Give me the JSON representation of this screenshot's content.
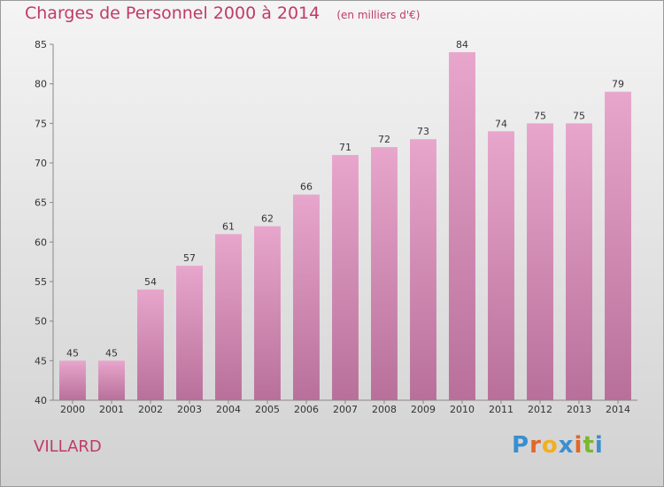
{
  "chart_data": {
    "type": "bar",
    "title": "Charges de Personnel 2000 à 2014",
    "subtitle": "(en milliers d'€)",
    "categories": [
      "2000",
      "2001",
      "2002",
      "2003",
      "2004",
      "2005",
      "2006",
      "2007",
      "2008",
      "2009",
      "2010",
      "2011",
      "2012",
      "2013",
      "2014"
    ],
    "values": [
      45,
      45,
      54,
      57,
      61,
      62,
      66,
      71,
      72,
      73,
      84,
      74,
      75,
      75,
      79
    ],
    "ylim": [
      40,
      85
    ],
    "yticks": [
      40,
      45,
      50,
      55,
      60,
      65,
      70,
      75,
      80,
      85
    ],
    "grid": false,
    "bar_color": "#d98ab7"
  },
  "commune": "VILLARD",
  "logo": {
    "letters": [
      "P",
      "r",
      "o",
      "x",
      "i",
      "t",
      "i"
    ]
  }
}
